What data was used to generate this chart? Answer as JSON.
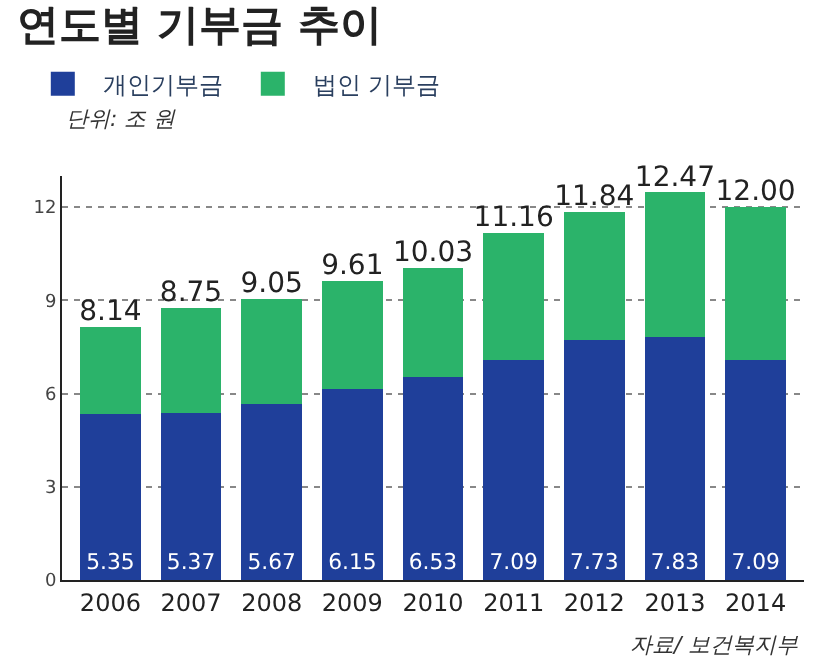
{
  "chart_data": {
    "type": "bar",
    "title": "연도별 기부금 추이",
    "stacked": true,
    "categories": [
      "2006",
      "2007",
      "2008",
      "2009",
      "2010",
      "2011",
      "2012",
      "2013",
      "2014"
    ],
    "series": [
      {
        "name": "개인기부금",
        "color": "#1f3f9a",
        "values": [
          5.35,
          5.37,
          5.67,
          6.15,
          6.53,
          7.09,
          7.73,
          7.83,
          7.09
        ],
        "value_labels": [
          "5.35",
          "5.37",
          "5.67",
          "6.15",
          "6.53",
          "7.09",
          "7.73",
          "7.83",
          "7.09"
        ]
      },
      {
        "name": "법인 기부금",
        "color": "#2bb36a",
        "values": [
          2.79,
          3.38,
          3.38,
          3.46,
          3.5,
          4.07,
          4.11,
          4.64,
          4.91
        ]
      }
    ],
    "totals": [
      "8.14",
      "8.75",
      "9.05",
      "9.61",
      "10.03",
      "11.16",
      "11.84",
      "12.47",
      "12.00"
    ],
    "ylim": [
      0,
      13
    ],
    "yticks": [
      0,
      3,
      6,
      9,
      12
    ],
    "grid": "y",
    "legend": "top left",
    "annotations": [
      "단위: 조 원",
      "자료/ 보건복지부"
    ]
  }
}
